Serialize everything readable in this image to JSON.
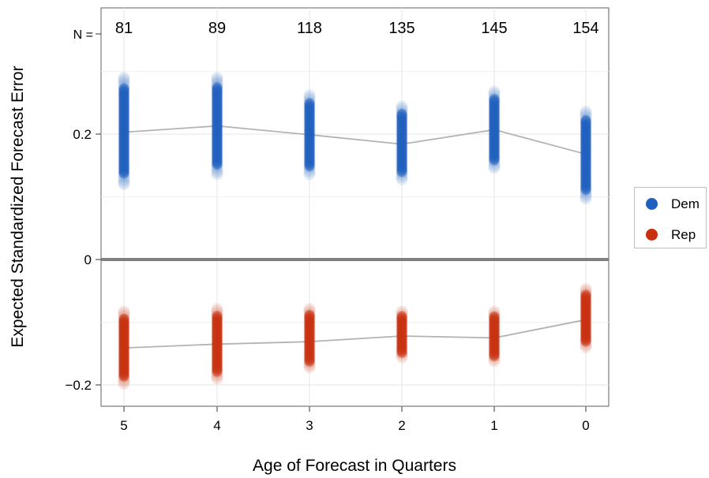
{
  "chart_data": {
    "type": "scatter",
    "title": "",
    "xlabel": "Age of Forecast in Quarters",
    "ylabel": "Expected Standardized Forecast Error",
    "x_categories": [
      "5",
      "4",
      "3",
      "2",
      "1",
      "0"
    ],
    "yticks": [
      -0.2,
      0,
      0.2
    ],
    "ytick_labels": [
      "−0.2",
      "0",
      "0.2"
    ],
    "ylim": [
      -0.22,
      0.32
    ],
    "grid": true,
    "legend_position": "right",
    "n_prefix": "N =",
    "n_values": [
      "81",
      "89",
      "118",
      "135",
      "145",
      "154"
    ],
    "series": [
      {
        "name": "Dem",
        "color": "#1f5fbf",
        "mean": [
          0.203,
          0.213,
          0.199,
          0.184,
          0.207,
          0.168
        ],
        "range_min": [
          0.12,
          0.136,
          0.136,
          0.128,
          0.146,
          0.097
        ],
        "range_max": [
          0.29,
          0.29,
          0.262,
          0.244,
          0.268,
          0.236
        ]
      },
      {
        "name": "Rep",
        "color": "#c8300f",
        "mean": [
          -0.141,
          -0.135,
          -0.131,
          -0.122,
          -0.125,
          -0.096
        ],
        "range_min": [
          -0.198,
          -0.19,
          -0.172,
          -0.156,
          -0.162,
          -0.14
        ],
        "range_max": [
          -0.083,
          -0.079,
          -0.079,
          -0.083,
          -0.083,
          -0.047
        ]
      }
    ],
    "hline": 0
  }
}
